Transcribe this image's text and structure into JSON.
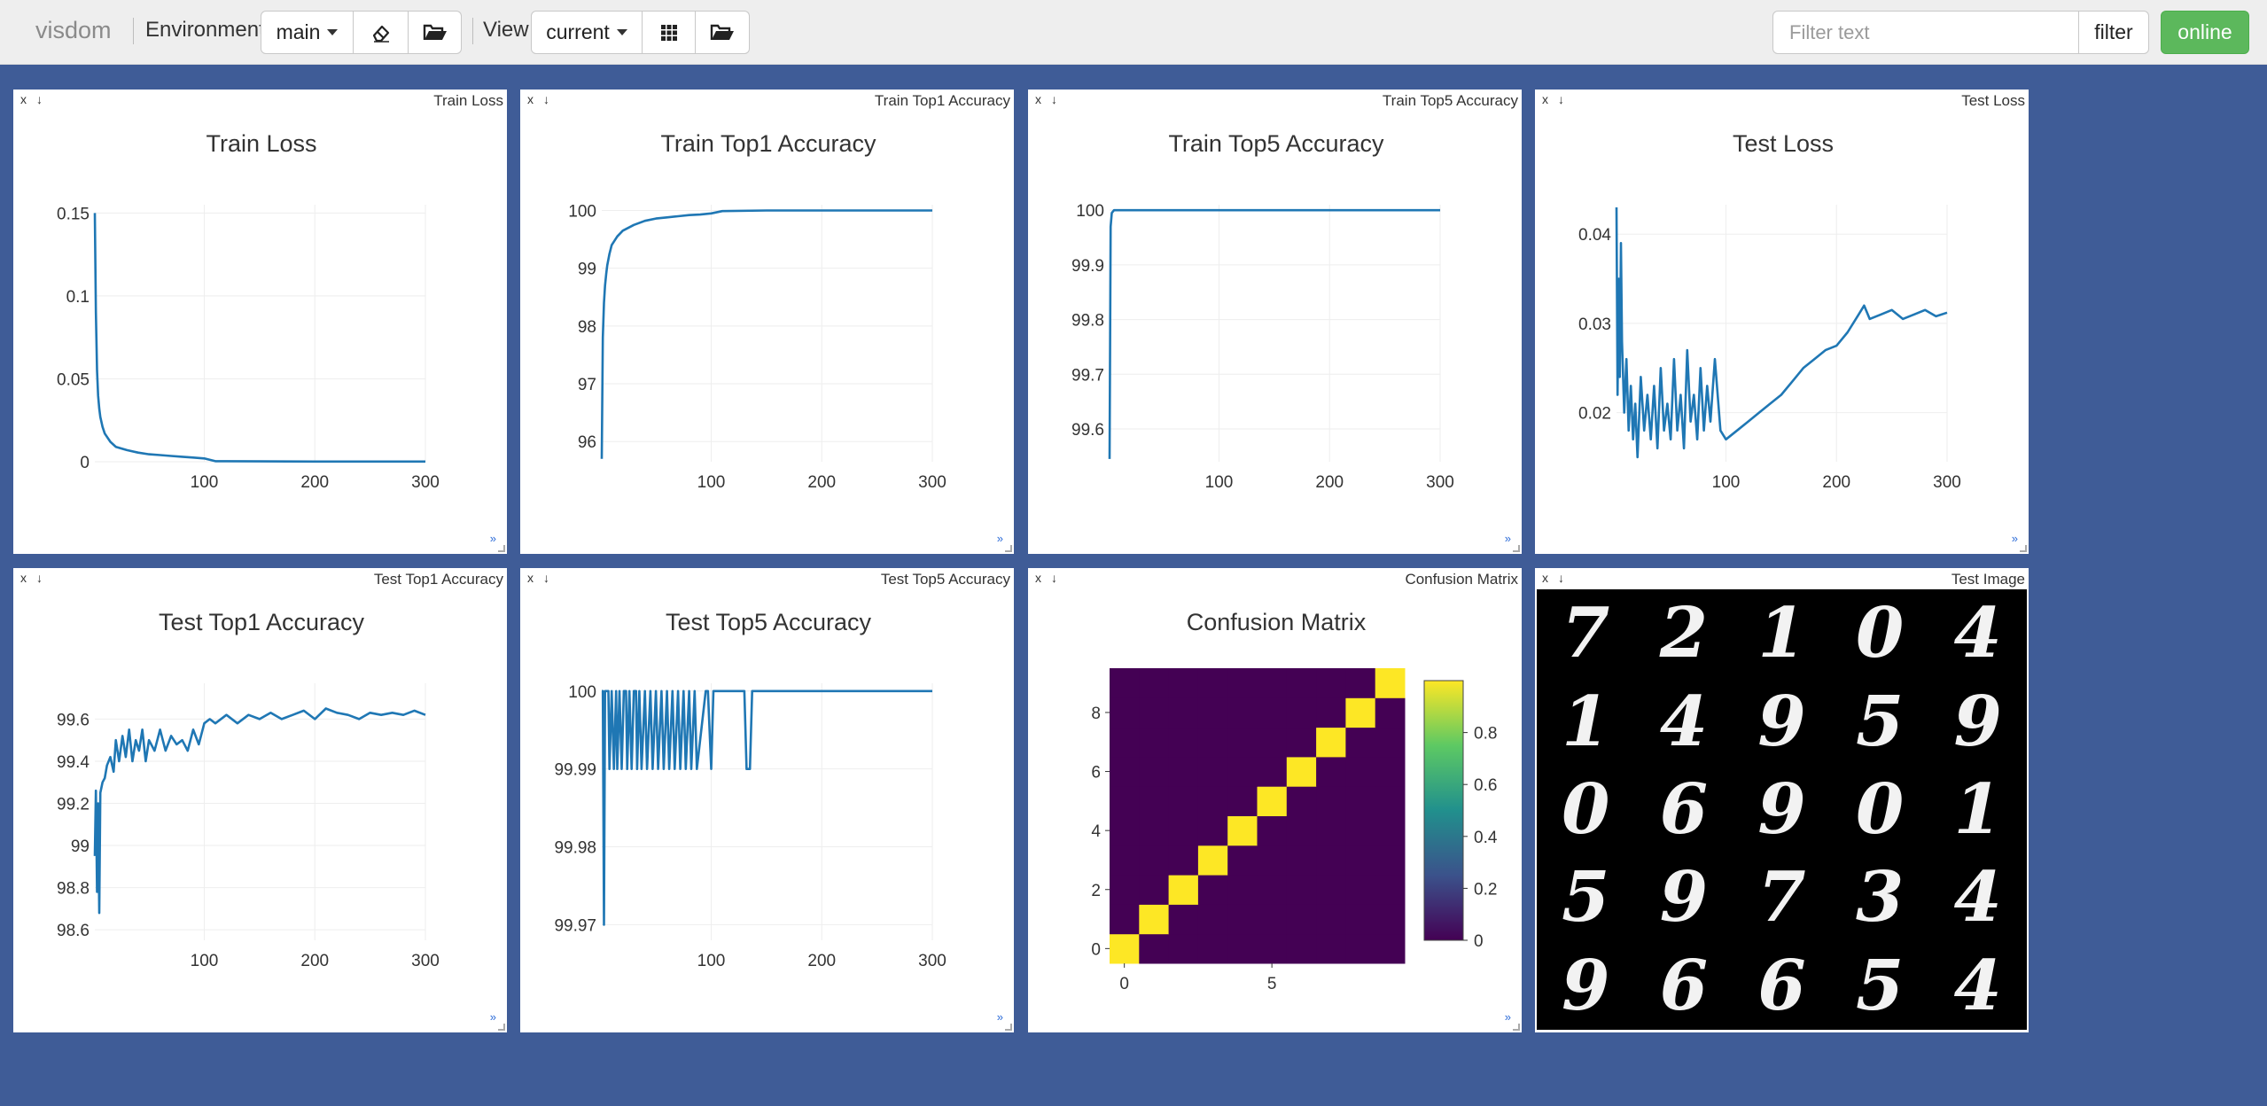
{
  "navbar": {
    "logo": "visdom",
    "environment_label": "Environment",
    "env_selected": "main",
    "view_label": "View",
    "view_selected": "current",
    "filter_placeholder": "Filter text",
    "filter_button": "filter",
    "status_button": "online",
    "icons": [
      "eraser-icon",
      "folder-open-icon",
      "grid-icon",
      "folder-open-icon"
    ]
  },
  "panes": [
    {
      "bar_title": "Train Loss"
    },
    {
      "bar_title": "Train Top1 Accuracy"
    },
    {
      "bar_title": "Train Top5 Accuracy"
    },
    {
      "bar_title": "Test Loss"
    },
    {
      "bar_title": "Test Top1 Accuracy"
    },
    {
      "bar_title": "Test Top5 Accuracy"
    },
    {
      "bar_title": "Confusion Matrix"
    },
    {
      "bar_title": "Test Image"
    }
  ],
  "pane_controls": {
    "close": "x",
    "download": "↓",
    "expand": "»"
  },
  "series_color": "#1f77b4",
  "chart_data": [
    {
      "type": "line",
      "title": "Train Loss",
      "xlim": [
        1,
        300
      ],
      "ylim": [
        0,
        0.155
      ],
      "xticks": [
        100,
        200,
        300
      ],
      "xtick_labels": [
        "100",
        "200",
        "300"
      ],
      "yticks": [
        0,
        0.05,
        0.1,
        0.15
      ],
      "ytick_labels": [
        "0",
        "0.05",
        "0.1",
        "0.15"
      ],
      "x": [
        1,
        2,
        3,
        4,
        5,
        6,
        8,
        10,
        15,
        20,
        30,
        40,
        50,
        60,
        70,
        80,
        90,
        100,
        110,
        150,
        200,
        250,
        300
      ],
      "y": [
        0.15,
        0.09,
        0.055,
        0.04,
        0.032,
        0.027,
        0.021,
        0.017,
        0.012,
        0.009,
        0.007,
        0.0055,
        0.0045,
        0.004,
        0.0035,
        0.003,
        0.0025,
        0.002,
        0.0003,
        0.0002,
        0.0001,
        0.0001,
        0.0001
      ]
    },
    {
      "type": "line",
      "title": "Train Top1 Accuracy",
      "xlim": [
        1,
        300
      ],
      "ylim": [
        95.65,
        100.1
      ],
      "xticks": [
        100,
        200,
        300
      ],
      "xtick_labels": [
        "100",
        "200",
        "300"
      ],
      "yticks": [
        96,
        97,
        98,
        99,
        100
      ],
      "ytick_labels": [
        "96",
        "97",
        "98",
        "99",
        "100"
      ],
      "x": [
        1,
        2,
        3,
        4,
        5,
        6,
        8,
        10,
        15,
        20,
        30,
        40,
        50,
        60,
        70,
        80,
        90,
        100,
        110,
        150,
        200,
        250,
        300
      ],
      "y": [
        95.7,
        97.8,
        98.4,
        98.7,
        98.9,
        99.05,
        99.25,
        99.4,
        99.55,
        99.65,
        99.75,
        99.82,
        99.86,
        99.88,
        99.9,
        99.92,
        99.93,
        99.95,
        99.99,
        100,
        100,
        100,
        100
      ]
    },
    {
      "type": "line",
      "title": "Train Top5 Accuracy",
      "xlim": [
        1,
        300
      ],
      "ylim": [
        99.54,
        100.01
      ],
      "xticks": [
        100,
        200,
        300
      ],
      "xtick_labels": [
        "100",
        "200",
        "300"
      ],
      "yticks": [
        99.6,
        99.7,
        99.8,
        99.9,
        100
      ],
      "ytick_labels": [
        "99.6",
        "99.7",
        "99.8",
        "99.9",
        "100"
      ],
      "x": [
        1,
        2,
        3,
        5,
        10,
        50,
        100,
        150,
        200,
        250,
        300
      ],
      "y": [
        99.545,
        99.97,
        99.995,
        100,
        100,
        100,
        100,
        100,
        100,
        100,
        100
      ]
    },
    {
      "type": "line",
      "title": "Test Loss",
      "xlim": [
        1,
        300
      ],
      "ylim": [
        0.0145,
        0.0433
      ],
      "xticks": [
        100,
        200,
        300
      ],
      "xtick_labels": [
        "100",
        "200",
        "300"
      ],
      "yticks": [
        0.02,
        0.03,
        0.04
      ],
      "ytick_labels": [
        "0.02",
        "0.03",
        "0.04"
      ],
      "x": [
        1,
        2,
        3,
        4,
        5,
        6,
        8,
        10,
        12,
        14,
        16,
        18,
        20,
        23,
        26,
        29,
        32,
        35,
        38,
        41,
        44,
        47,
        50,
        53,
        56,
        59,
        62,
        65,
        68,
        71,
        74,
        77,
        80,
        83,
        86,
        90,
        95,
        100,
        110,
        120,
        130,
        140,
        150,
        160,
        170,
        180,
        190,
        200,
        210,
        220,
        225,
        230,
        240,
        250,
        260,
        270,
        280,
        290,
        300
      ],
      "y": [
        0.043,
        0.022,
        0.035,
        0.024,
        0.039,
        0.028,
        0.02,
        0.026,
        0.018,
        0.023,
        0.017,
        0.021,
        0.015,
        0.024,
        0.018,
        0.022,
        0.017,
        0.023,
        0.016,
        0.025,
        0.018,
        0.021,
        0.017,
        0.026,
        0.018,
        0.022,
        0.016,
        0.027,
        0.019,
        0.022,
        0.017,
        0.025,
        0.018,
        0.023,
        0.019,
        0.026,
        0.018,
        0.017,
        0.018,
        0.019,
        0.02,
        0.021,
        0.022,
        0.0235,
        0.025,
        0.026,
        0.027,
        0.0275,
        0.029,
        0.031,
        0.032,
        0.0305,
        0.031,
        0.0315,
        0.0305,
        0.031,
        0.0315,
        0.0308,
        0.0312
      ]
    },
    {
      "type": "line",
      "title": "Test Top1 Accuracy",
      "xlim": [
        1,
        300
      ],
      "ylim": [
        98.55,
        99.77
      ],
      "xticks": [
        100,
        200,
        300
      ],
      "xtick_labels": [
        "100",
        "200",
        "300"
      ],
      "yticks": [
        98.6,
        98.8,
        99,
        99.2,
        99.4,
        99.6
      ],
      "ytick_labels": [
        "98.6",
        "98.8",
        "99",
        "99.2",
        "99.4",
        "99.6"
      ],
      "x": [
        1,
        2,
        3,
        4,
        5,
        6,
        8,
        10,
        12,
        15,
        18,
        20,
        23,
        26,
        29,
        32,
        35,
        38,
        41,
        44,
        47,
        50,
        55,
        60,
        65,
        70,
        75,
        80,
        85,
        90,
        95,
        100,
        105,
        110,
        120,
        130,
        140,
        150,
        160,
        170,
        180,
        190,
        200,
        210,
        220,
        230,
        240,
        250,
        260,
        270,
        280,
        290,
        300
      ],
      "y": [
        98.95,
        99.26,
        98.78,
        99.2,
        98.68,
        99.25,
        99.3,
        99.32,
        99.38,
        99.42,
        99.35,
        99.5,
        99.4,
        99.52,
        99.42,
        99.55,
        99.4,
        99.5,
        99.45,
        99.55,
        99.4,
        99.5,
        99.45,
        99.55,
        99.45,
        99.52,
        99.48,
        99.5,
        99.45,
        99.55,
        99.48,
        99.58,
        99.6,
        99.58,
        99.62,
        99.58,
        99.62,
        99.6,
        99.63,
        99.6,
        99.62,
        99.64,
        99.6,
        99.65,
        99.63,
        99.62,
        99.6,
        99.63,
        99.62,
        99.63,
        99.62,
        99.64,
        99.62
      ]
    },
    {
      "type": "line",
      "title": "Test Top5 Accuracy",
      "xlim": [
        1,
        300
      ],
      "ylim": [
        99.968,
        100.001
      ],
      "xticks": [
        100,
        200,
        300
      ],
      "xtick_labels": [
        "100",
        "200",
        "300"
      ],
      "yticks": [
        99.97,
        99.98,
        99.99,
        100
      ],
      "ytick_labels": [
        "99.97",
        "99.98",
        "99.99",
        "100"
      ],
      "x": [
        1,
        2,
        3,
        4,
        5,
        6,
        7,
        8,
        10,
        12,
        14,
        15,
        17,
        19,
        21,
        23,
        24,
        26,
        28,
        30,
        32,
        33,
        35,
        37,
        40,
        42,
        45,
        47,
        50,
        52,
        55,
        57,
        60,
        62,
        65,
        67,
        70,
        72,
        75,
        77,
        80,
        82,
        85,
        87,
        95,
        97,
        100,
        102,
        130,
        132,
        135,
        137,
        140,
        150,
        200,
        250,
        300
      ],
      "y": [
        100,
        100,
        99.97,
        100,
        100,
        100,
        100,
        99.99,
        100,
        99.99,
        100,
        99.99,
        100,
        99.99,
        100,
        100,
        99.99,
        100,
        99.99,
        100,
        100,
        99.99,
        100,
        99.99,
        100,
        99.99,
        100,
        99.99,
        100,
        99.99,
        100,
        99.99,
        100,
        99.99,
        100,
        99.99,
        100,
        99.99,
        100,
        99.99,
        100,
        99.99,
        100,
        99.99,
        100,
        100,
        99.99,
        100,
        100,
        99.99,
        99.99,
        100,
        100,
        100,
        100,
        100,
        100
      ]
    },
    {
      "type": "heatmap",
      "title": "Confusion Matrix",
      "size": 10,
      "diagonal_value": 1,
      "off_diagonal_value": 0,
      "xticks": [
        0,
        5
      ],
      "xtick_labels": [
        "0",
        "5"
      ],
      "yticks": [
        0,
        2,
        4,
        6,
        8
      ],
      "ytick_labels": [
        "0",
        "2",
        "4",
        "6",
        "8"
      ],
      "colorbar_ticks": [
        0,
        0.2,
        0.4,
        0.6,
        0.8
      ],
      "colorbar_labels": [
        "0",
        "0.2",
        "0.4",
        "0.6",
        "0.8"
      ],
      "colorscale": [
        "#440154",
        "#3b528b",
        "#21908d",
        "#5dc963",
        "#fde725"
      ]
    },
    {
      "type": "image",
      "title": "Test Image",
      "digits": [
        "7",
        "2",
        "1",
        "0",
        "4",
        "1",
        "4",
        "9",
        "5",
        "9",
        "0",
        "6",
        "9",
        "0",
        "1",
        "5",
        "9",
        "7",
        "3",
        "4",
        "9",
        "6",
        "6",
        "5",
        "4"
      ]
    }
  ]
}
